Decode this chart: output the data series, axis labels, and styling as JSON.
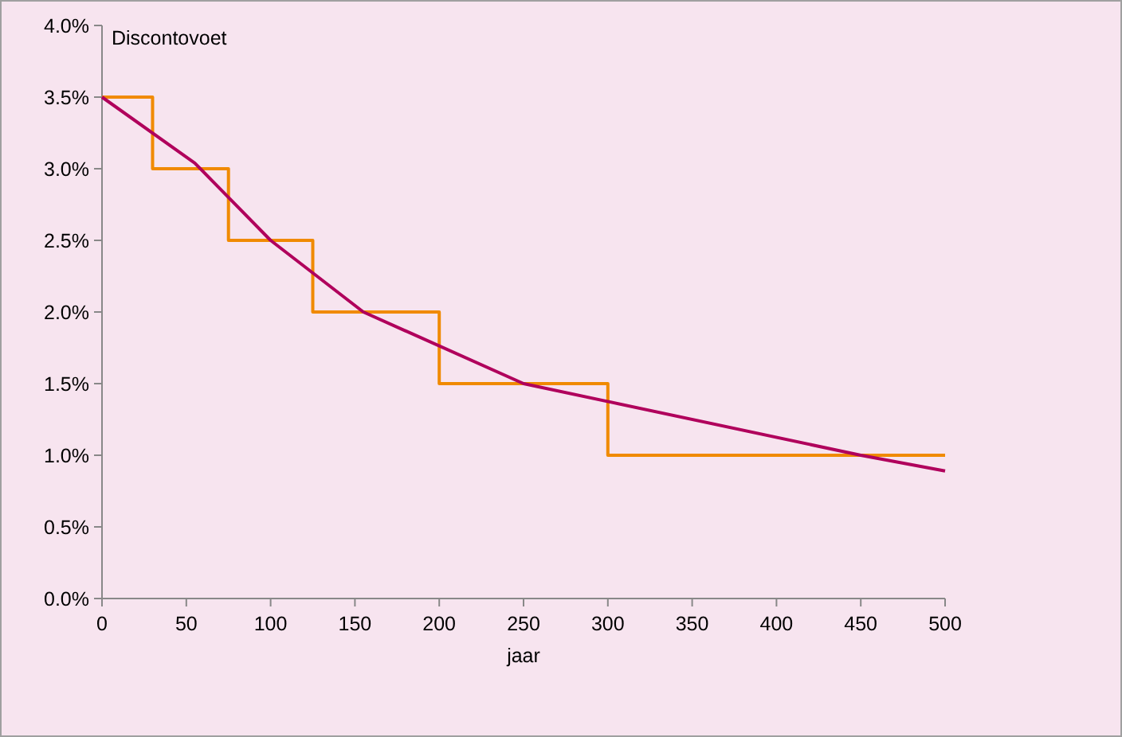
{
  "chart_data": {
    "type": "line",
    "ylabel": "Discontovoet",
    "xlabel": "jaar",
    "xlim": [
      0,
      500
    ],
    "xticks": [
      0,
      50,
      100,
      150,
      200,
      250,
      300,
      350,
      400,
      450,
      500
    ],
    "ylim": [
      0,
      4
    ],
    "yticks": [
      {
        "value": 0,
        "label": "0.0%"
      },
      {
        "value": 0.5,
        "label": "0.5%"
      },
      {
        "value": 1,
        "label": "1.0%"
      },
      {
        "value": 1.5,
        "label": "1.5%"
      },
      {
        "value": 2,
        "label": "2.0%"
      },
      {
        "value": 2.5,
        "label": "2.5%"
      },
      {
        "value": 3,
        "label": "3.0%"
      },
      {
        "value": 3.5,
        "label": "3.5%"
      },
      {
        "value": 4,
        "label": "4.0%"
      }
    ],
    "grid": false,
    "marker": "none",
    "series": [
      {
        "type": "step",
        "color": "#f08a00",
        "x": [
          0,
          30,
          75,
          125,
          200,
          300,
          500
        ],
        "values": [
          3.5,
          3.0,
          2.5,
          2.0,
          1.5,
          1.0,
          1.0
        ]
      },
      {
        "color": "#b0005c",
        "x": [
          0,
          55,
          100,
          155,
          250,
          450,
          500
        ],
        "values": [
          3.5,
          3.04,
          2.5,
          2.0,
          1.5,
          1.0,
          0.89
        ]
      }
    ]
  }
}
